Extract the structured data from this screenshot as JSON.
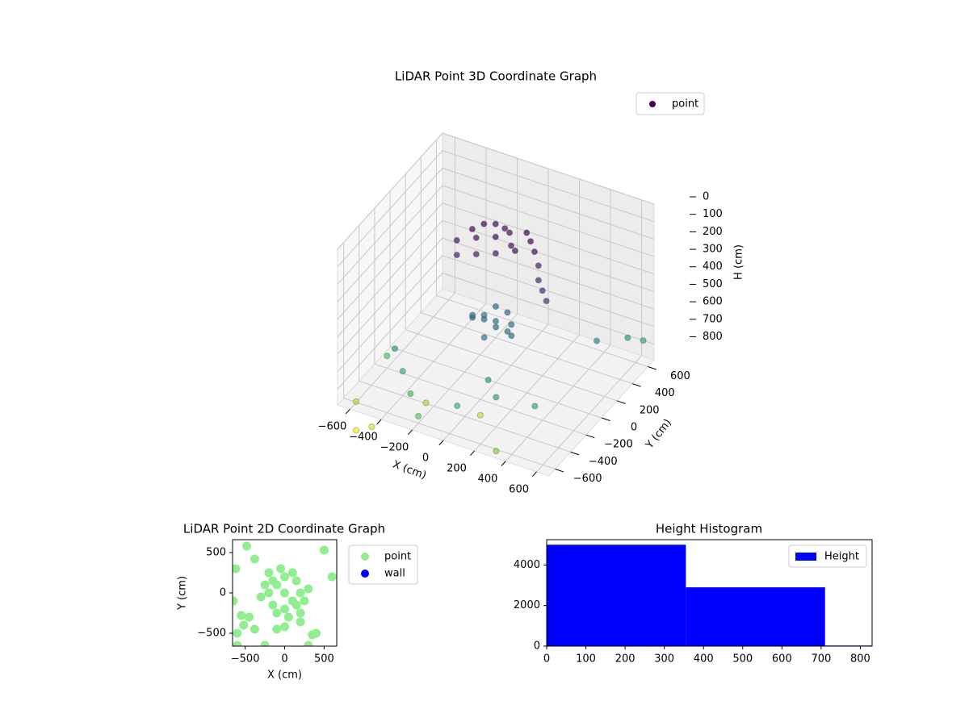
{
  "chart_data": [
    {
      "type": "scatter3d",
      "title": "LiDAR Point 3D Coordinate Graph",
      "xlabel": "X (cm)",
      "ylabel": "Y (cm)",
      "zlabel": "H (cm)",
      "xlim": [
        -680,
        680
      ],
      "ylim": [
        -680,
        680
      ],
      "zlim": [
        890,
        0
      ],
      "xticks": [
        {
          "value": -600,
          "label": "−600"
        },
        {
          "value": -400,
          "label": "−400"
        },
        {
          "value": -200,
          "label": "−200"
        },
        0,
        200,
        400,
        600
      ],
      "yticks": [
        {
          "value": -600,
          "label": "−600"
        },
        {
          "value": -400,
          "label": "−400"
        },
        {
          "value": -200,
          "label": "−200"
        },
        0,
        200,
        400,
        600
      ],
      "zticks": [
        0,
        100,
        200,
        300,
        400,
        500,
        600,
        700,
        800
      ],
      "colormap": "viridis",
      "grid": true,
      "legend": "upper right",
      "series": [
        {
          "name": "point",
          "color": "#440154",
          "x": [
            -300,
            -250,
            -200,
            -150,
            -100,
            -50,
            0,
            -350,
            -300,
            -200,
            -100,
            50,
            100,
            150,
            200,
            250,
            300,
            -250,
            -150,
            0,
            -100,
            -50,
            0,
            50,
            100,
            -150,
            0,
            50,
            -50,
            100,
            150,
            -100,
            -500,
            -400,
            -300,
            -600,
            -200,
            0,
            200,
            400,
            500,
            600,
            650,
            -650,
            -500,
            -300,
            0,
            300,
            -600,
            100
          ],
          "y": [
            300,
            350,
            400,
            420,
            380,
            300,
            250,
            200,
            100,
            150,
            200,
            350,
            300,
            250,
            150,
            100,
            50,
            250,
            300,
            400,
            -100,
            -50,
            0,
            -100,
            0,
            0,
            -150,
            50,
            100,
            -50,
            -100,
            50,
            -300,
            -400,
            -500,
            -200,
            -600,
            -500,
            -400,
            -300,
            300,
            500,
            600,
            -500,
            -600,
            -300,
            -200,
            -600,
            -600,
            -300
          ],
          "z": [
            250,
            230,
            240,
            260,
            250,
            270,
            260,
            280,
            300,
            290,
            280,
            240,
            260,
            300,
            320,
            340,
            360,
            260,
            250,
            230,
            500,
            520,
            540,
            510,
            530,
            550,
            560,
            500,
            520,
            545,
            530,
            560,
            700,
            750,
            800,
            820,
            850,
            780,
            720,
            760,
            650,
            700,
            750,
            950,
            1000,
            950,
            980,
            900,
            1050,
            700
          ]
        }
      ]
    },
    {
      "type": "scatter",
      "title": "LiDAR Point 2D Coordinate Graph",
      "xlabel": "X (cm)",
      "ylabel": "Y (cm)",
      "xlim": [
        -660,
        660
      ],
      "ylim": [
        -660,
        660
      ],
      "xticks": [
        {
          "value": -500,
          "label": "−500"
        },
        0,
        500
      ],
      "yticks": [
        {
          "value": -500,
          "label": "−500"
        },
        0,
        500
      ],
      "legend": "outside upper right",
      "series": [
        {
          "name": "point",
          "color": "#90ee90",
          "x": [
            0,
            -100,
            100,
            -200,
            200,
            0,
            0,
            -150,
            150,
            -150,
            150,
            -250,
            250,
            -100,
            100,
            -50,
            50,
            -300,
            300,
            200,
            -200,
            -480,
            -620,
            600,
            500,
            -520,
            -600,
            -450,
            -380,
            300,
            350,
            -100,
            0,
            -250,
            -600,
            400,
            -650,
            -550,
            -380,
            200
          ],
          "y": [
            0,
            100,
            -100,
            0,
            0,
            200,
            -200,
            -150,
            150,
            150,
            -150,
            100,
            -100,
            -250,
            250,
            300,
            -300,
            -50,
            50,
            -250,
            250,
            580,
            300,
            200,
            530,
            -400,
            -500,
            -300,
            -450,
            -650,
            -520,
            -450,
            -420,
            -650,
            -650,
            -500,
            -100,
            -280,
            420,
            -360
          ]
        },
        {
          "name": "wall",
          "color": "#0000ff",
          "x": [],
          "y": []
        }
      ]
    },
    {
      "type": "histogram",
      "title": "Height Histogram",
      "bins": [
        0,
        355,
        710,
        1065
      ],
      "xlim": [
        0,
        830
      ],
      "ylim": [
        0,
        5250
      ],
      "xticks": [
        0,
        100,
        200,
        300,
        400,
        500,
        600,
        700,
        800
      ],
      "yticks": [
        0,
        2000,
        4000
      ],
      "legend": "upper right",
      "series": [
        {
          "name": "Height",
          "color": "#0000ff",
          "values": [
            5000,
            2900,
            30
          ]
        }
      ]
    }
  ]
}
